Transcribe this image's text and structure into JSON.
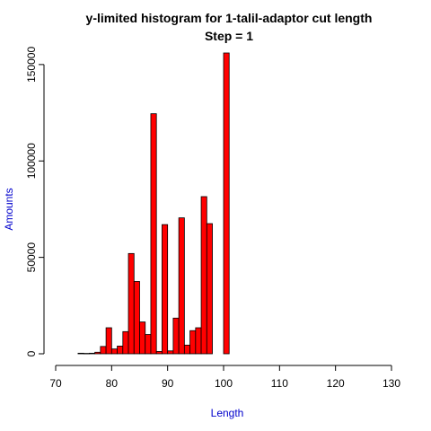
{
  "chart_data": {
    "type": "bar",
    "title": "y-limited histogram for 1-talil-adaptor cut length",
    "subtitle": "Step =  1",
    "xlabel": "Length",
    "ylabel": "Amounts",
    "xlim": [
      70,
      130
    ],
    "ylim": [
      0,
      156000
    ],
    "x_ticks": [
      70,
      80,
      90,
      100,
      110,
      120,
      130
    ],
    "y_ticks": [
      0,
      50000,
      100000,
      150000
    ],
    "bin_width": 1,
    "bars": [
      {
        "start": 74,
        "end": 75,
        "value": 300
      },
      {
        "start": 75,
        "end": 76,
        "value": 200
      },
      {
        "start": 76,
        "end": 77,
        "value": 300
      },
      {
        "start": 77,
        "end": 78,
        "value": 800
      },
      {
        "start": 78,
        "end": 79,
        "value": 3800
      },
      {
        "start": 79,
        "end": 80,
        "value": 13500
      },
      {
        "start": 80,
        "end": 81,
        "value": 2500
      },
      {
        "start": 81,
        "end": 82,
        "value": 4000
      },
      {
        "start": 82,
        "end": 83,
        "value": 11500
      },
      {
        "start": 83,
        "end": 84,
        "value": 52000
      },
      {
        "start": 84,
        "end": 85,
        "value": 37500
      },
      {
        "start": 85,
        "end": 86,
        "value": 16500
      },
      {
        "start": 86,
        "end": 87,
        "value": 10000
      },
      {
        "start": 87,
        "end": 88,
        "value": 124500
      },
      {
        "start": 88,
        "end": 89,
        "value": 1200
      },
      {
        "start": 89,
        "end": 90,
        "value": 67000
      },
      {
        "start": 90,
        "end": 91,
        "value": 1500
      },
      {
        "start": 91,
        "end": 92,
        "value": 18500
      },
      {
        "start": 92,
        "end": 93,
        "value": 70500
      },
      {
        "start": 93,
        "end": 94,
        "value": 4500
      },
      {
        "start": 94,
        "end": 95,
        "value": 12000
      },
      {
        "start": 95,
        "end": 96,
        "value": 13500
      },
      {
        "start": 96,
        "end": 97,
        "value": 81500
      },
      {
        "start": 97,
        "end": 98,
        "value": 67500
      },
      {
        "start": 100,
        "end": 101,
        "value": 156000
      }
    ],
    "colors": {
      "bar_fill": "#ff0000",
      "bar_stroke": "#000000",
      "axis_label": "#0000cc",
      "title": "#000000"
    },
    "grid": false,
    "legend": "none"
  }
}
